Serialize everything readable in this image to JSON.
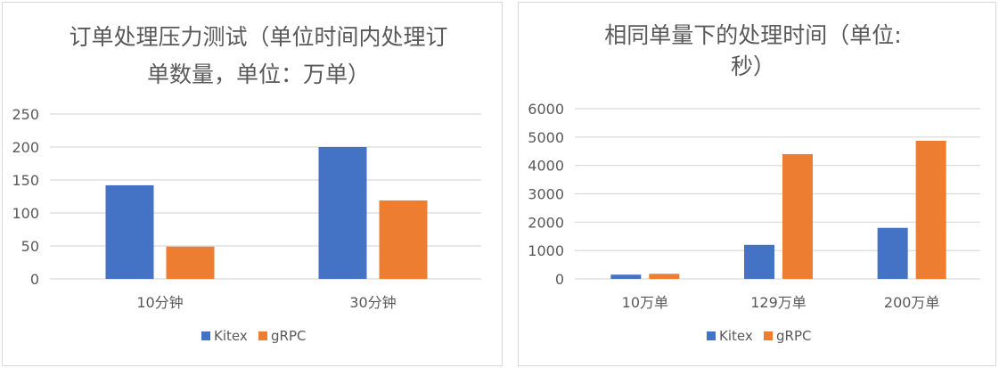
{
  "chart_data": [
    {
      "type": "bar",
      "title_lines": [
        "订单处理压力测试（单位时间内处理订",
        "单数量，单位：万单）"
      ],
      "categories": [
        "10分钟",
        "30分钟"
      ],
      "series": [
        {
          "name": "Kitex",
          "values": [
            142,
            200
          ],
          "color": "#4472C4"
        },
        {
          "name": "gRPC",
          "values": [
            49,
            119
          ],
          "color": "#ED7D31"
        }
      ],
      "yticks": [
        "0",
        "50",
        "100",
        "150",
        "200",
        "250"
      ],
      "ylim": [
        0,
        250
      ],
      "grid": true,
      "legend": "bottom"
    },
    {
      "type": "bar",
      "title_lines": [
        "相同单量下的处理时间（单位:",
        "秒）"
      ],
      "categories": [
        "10万单",
        "129万单",
        "200万单"
      ],
      "series": [
        {
          "name": "Kitex",
          "values": [
            150,
            1200,
            1800
          ],
          "color": "#4472C4"
        },
        {
          "name": "gRPC",
          "values": [
            180,
            4400,
            4870
          ],
          "color": "#ED7D31"
        }
      ],
      "yticks": [
        "0",
        "1000",
        "2000",
        "3000",
        "4000",
        "5000",
        "6000"
      ],
      "ylim": [
        0,
        6000
      ],
      "grid": true,
      "legend": "bottom"
    }
  ]
}
